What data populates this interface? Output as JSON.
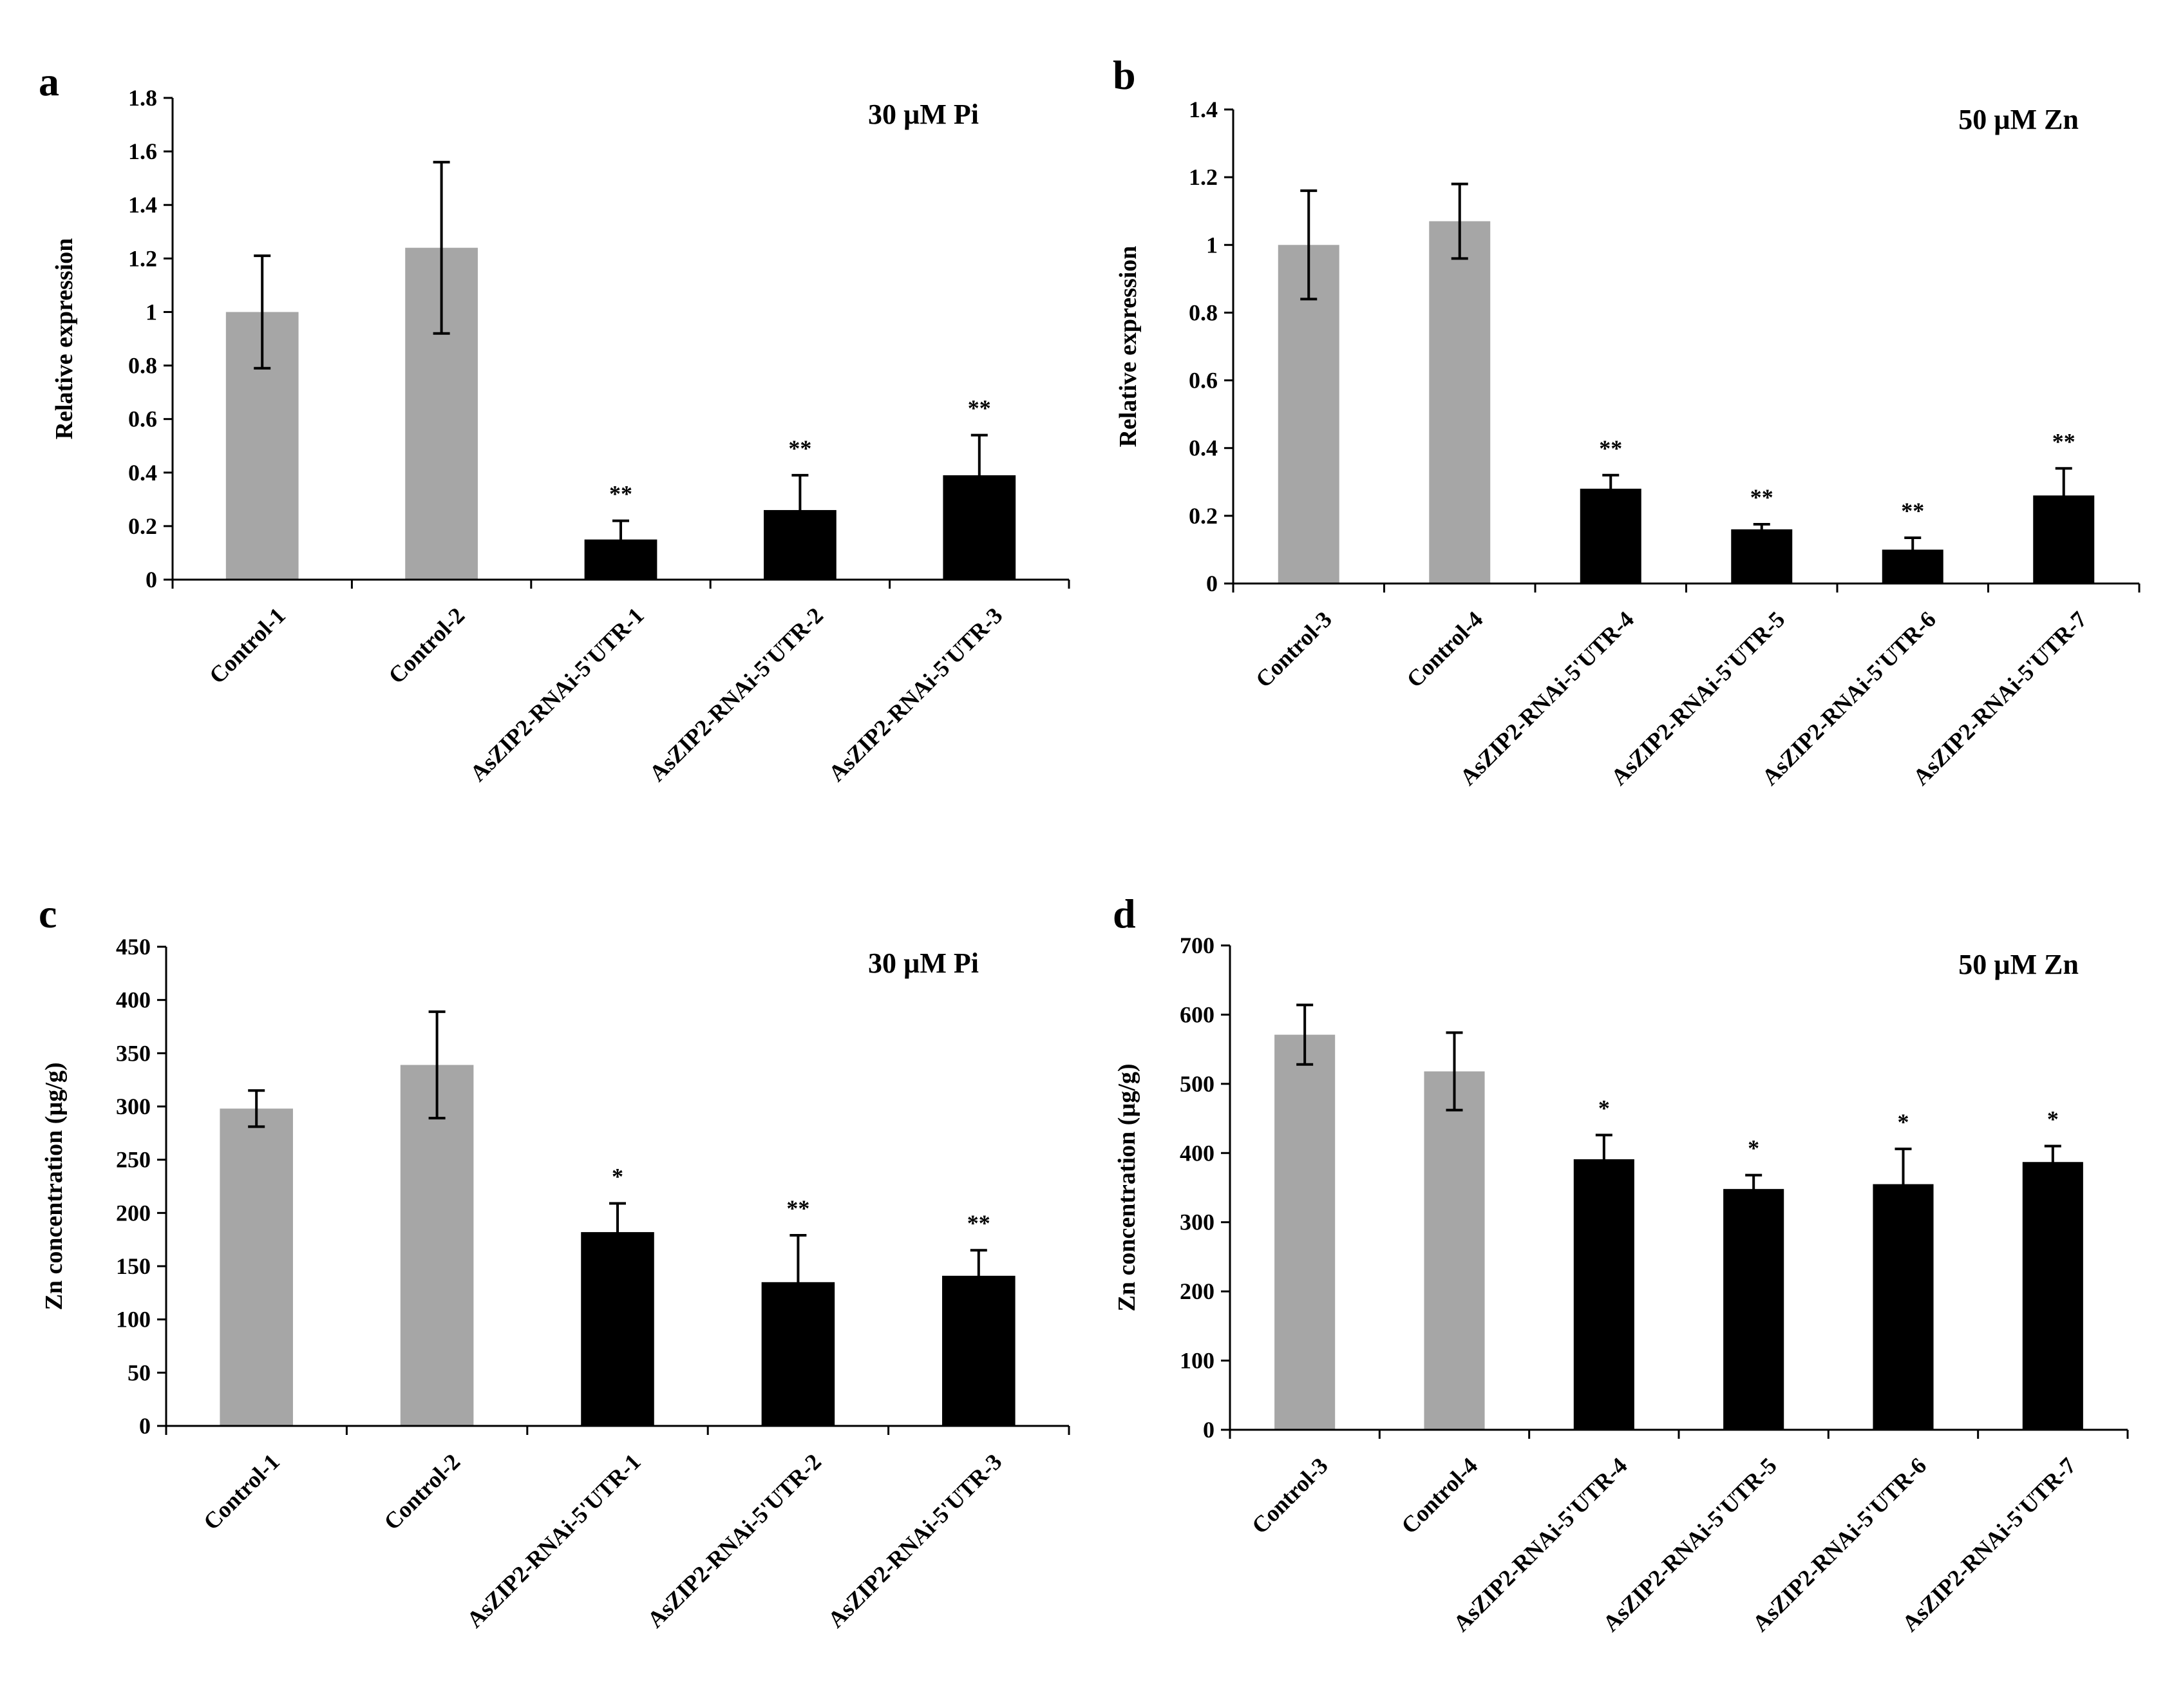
{
  "colors": {
    "control": "#a6a6a6",
    "rnai": "#000000",
    "axis": "#000000"
  },
  "chart_data": [
    {
      "type": "bar",
      "panel": "a",
      "condition": "30 µM Pi",
      "ylabel": "Relative expression",
      "ylim": [
        0,
        1.8
      ],
      "yticks": [
        "0",
        "0.2",
        "0.4",
        "0.6",
        "0.8",
        "1",
        "1.2",
        "1.4",
        "1.6",
        "1.8"
      ],
      "categories": [
        "Control-1",
        "Control-2",
        "AsZIP2-RNAi-5'UTR-1",
        "AsZIP2-RNAi-5'UTR-2",
        "AsZIP2-RNAi-5'UTR-3"
      ],
      "values": [
        1.0,
        1.24,
        0.15,
        0.26,
        0.39
      ],
      "errors": [
        0.21,
        0.32,
        0.07,
        0.13,
        0.15
      ],
      "significance": [
        "",
        "",
        "**",
        "**",
        "**"
      ],
      "groups": [
        "control",
        "control",
        "rnai",
        "rnai",
        "rnai"
      ]
    },
    {
      "type": "bar",
      "panel": "b",
      "condition": "50 µM Zn",
      "ylabel": "Relative expression",
      "ylim": [
        0,
        1.4
      ],
      "yticks": [
        "0",
        "0.2",
        "0.4",
        "0.6",
        "0.8",
        "1",
        "1.2",
        "1.4"
      ],
      "categories": [
        "Control-3",
        "Control-4",
        "AsZIP2-RNAi-5'UTR-4",
        "AsZIP2-RNAi-5'UTR-5",
        "AsZIP2-RNAi-5'UTR-6",
        "AsZIP2-RNAi-5'UTR-7"
      ],
      "values": [
        1.0,
        1.07,
        0.28,
        0.16,
        0.1,
        0.26
      ],
      "errors": [
        0.16,
        0.11,
        0.04,
        0.015,
        0.035,
        0.08
      ],
      "significance": [
        "",
        "",
        "**",
        "**",
        "**",
        "**"
      ],
      "groups": [
        "control",
        "control",
        "rnai",
        "rnai",
        "rnai",
        "rnai"
      ]
    },
    {
      "type": "bar",
      "panel": "c",
      "condition": "30 µM Pi",
      "ylabel": "Zn concentration (µg/g)",
      "ylim": [
        0,
        450
      ],
      "yticks": [
        "0",
        "50",
        "100",
        "150",
        "200",
        "250",
        "300",
        "350",
        "400",
        "450"
      ],
      "categories": [
        "Control-1",
        "Control-2",
        "AsZIP2-RNAi-5'UTR-1",
        "AsZIP2-RNAi-5'UTR-2",
        "AsZIP2-RNAi-5'UTR-3"
      ],
      "values": [
        298,
        339,
        182,
        135,
        141
      ],
      "errors": [
        17,
        50,
        27,
        44,
        24
      ],
      "significance": [
        "",
        "",
        "*",
        "**",
        "**"
      ],
      "groups": [
        "control",
        "control",
        "rnai",
        "rnai",
        "rnai"
      ]
    },
    {
      "type": "bar",
      "panel": "d",
      "condition": "50 µM Zn",
      "ylabel": "Zn concentration (µg/g)",
      "ylim": [
        0,
        700
      ],
      "yticks": [
        "0",
        "100",
        "200",
        "300",
        "400",
        "500",
        "600",
        "700"
      ],
      "categories": [
        "Control-3",
        "Control-4",
        "AsZIP2-RNAi-5'UTR-4",
        "AsZIP2-RNAi-5'UTR-5",
        "AsZIP2-RNAi-5'UTR-6",
        "AsZIP2-RNAi-5'UTR-7"
      ],
      "values": [
        571,
        518,
        391,
        348,
        355,
        387
      ],
      "errors": [
        43,
        56,
        35,
        20,
        51,
        23
      ],
      "significance": [
        "",
        "",
        "*",
        "*",
        "*",
        "*"
      ],
      "groups": [
        "control",
        "control",
        "rnai",
        "rnai",
        "rnai",
        "rnai"
      ]
    }
  ]
}
